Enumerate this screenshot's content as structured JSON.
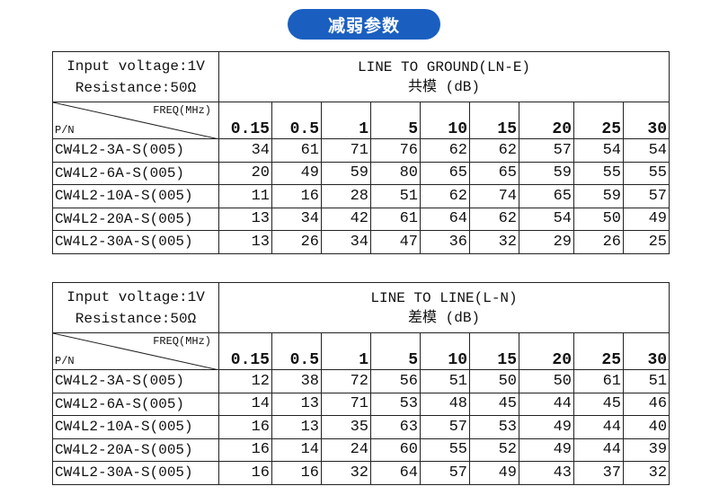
{
  "heading": "减弱参数",
  "colors": {
    "heading_bg": "#1a5fc0",
    "heading_text": "#ffffff"
  },
  "condition": {
    "voltage": "Input voltage:1V",
    "resistance": "Resistance:50Ω"
  },
  "freq_label": "FREQ(MHz)",
  "pn_label": "P/N",
  "frequencies": [
    "0.15",
    "0.5",
    "1",
    "5",
    "10",
    "15",
    "20",
    "25",
    "30"
  ],
  "tables": [
    {
      "title": "LINE TO GROUND(LN-E)",
      "subtitle": "共模 (dB)",
      "rows": [
        {
          "pn": "CW4L2-3A-S(005)",
          "values": [
            "34",
            "61",
            "71",
            "76",
            "62",
            "62",
            "57",
            "54",
            "54"
          ]
        },
        {
          "pn": "CW4L2-6A-S(005)",
          "values": [
            "20",
            "49",
            "59",
            "80",
            "65",
            "65",
            "59",
            "55",
            "55"
          ]
        },
        {
          "pn": "CW4L2-10A-S(005)",
          "values": [
            "11",
            "16",
            "28",
            "51",
            "62",
            "74",
            "65",
            "59",
            "57"
          ]
        },
        {
          "pn": "CW4L2-20A-S(005)",
          "values": [
            "13",
            "34",
            "42",
            "61",
            "64",
            "62",
            "54",
            "50",
            "49"
          ]
        },
        {
          "pn": "CW4L2-30A-S(005)",
          "values": [
            "13",
            "26",
            "34",
            "47",
            "36",
            "32",
            "29",
            "26",
            "25"
          ]
        }
      ]
    },
    {
      "title": "LINE TO LINE(L-N)",
      "subtitle": "差模 (dB)",
      "rows": [
        {
          "pn": "CW4L2-3A-S(005)",
          "values": [
            "12",
            "38",
            "72",
            "56",
            "51",
            "50",
            "50",
            "61",
            "51"
          ]
        },
        {
          "pn": "CW4L2-6A-S(005)",
          "values": [
            "14",
            "13",
            "71",
            "53",
            "48",
            "45",
            "44",
            "45",
            "46"
          ]
        },
        {
          "pn": "CW4L2-10A-S(005)",
          "values": [
            "16",
            "13",
            "35",
            "63",
            "57",
            "53",
            "49",
            "44",
            "40"
          ]
        },
        {
          "pn": "CW4L2-20A-S(005)",
          "values": [
            "16",
            "14",
            "24",
            "60",
            "55",
            "52",
            "49",
            "44",
            "39"
          ]
        },
        {
          "pn": "CW4L2-30A-S(005)",
          "values": [
            "16",
            "16",
            "32",
            "64",
            "57",
            "49",
            "43",
            "37",
            "32"
          ]
        }
      ]
    }
  ]
}
